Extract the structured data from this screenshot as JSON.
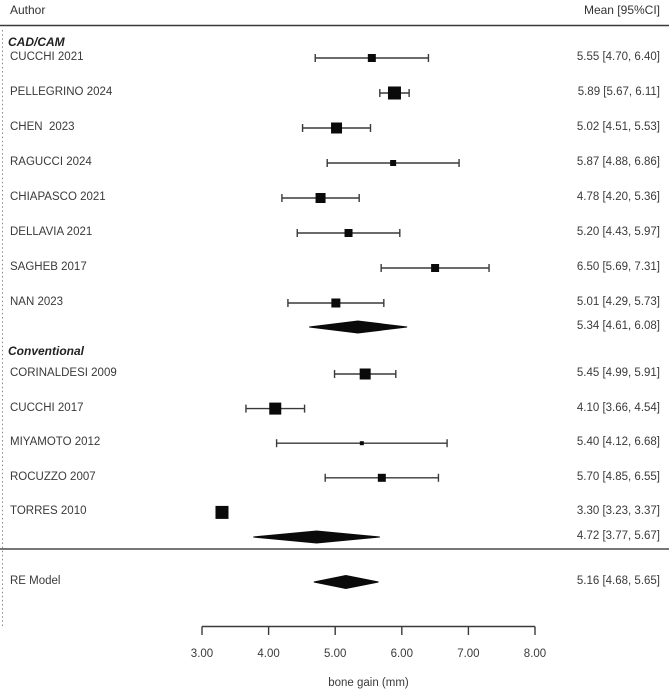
{
  "header": {
    "author_label": "Author",
    "mean_label": "Mean [95%CI]"
  },
  "chart_data": {
    "type": "forest",
    "title": "",
    "xlabel": "bone gain (mm)",
    "axis": {
      "min": 3.0,
      "max": 8.0,
      "tick_values": [
        3,
        4,
        5,
        6,
        7,
        8
      ],
      "tick_labels": [
        "3.00",
        "4.00",
        "5.00",
        "6.00",
        "7.00",
        "8.00"
      ]
    },
    "groups": [
      {
        "label": "CAD/CAM",
        "studies": [
          {
            "label": "CUCCHI 2021",
            "mean": 5.55,
            "lo": 4.7,
            "hi": 6.4,
            "text": "5.55 [4.70, 6.40]",
            "size": 8
          },
          {
            "label": "PELLEGRINO 2024",
            "mean": 5.89,
            "lo": 5.67,
            "hi": 6.11,
            "text": "5.89 [5.67, 6.11]",
            "size": 13
          },
          {
            "label": "CHEN  2023",
            "mean": 5.02,
            "lo": 4.51,
            "hi": 5.53,
            "text": "5.02 [4.51, 5.53]",
            "size": 11
          },
          {
            "label": "RAGUCCI 2024",
            "mean": 5.87,
            "lo": 4.88,
            "hi": 6.86,
            "text": "5.87 [4.88, 6.86]",
            "size": 6
          },
          {
            "label": "CHIAPASCO 2021",
            "mean": 4.78,
            "lo": 4.2,
            "hi": 5.36,
            "text": "4.78 [4.20, 5.36]",
            "size": 10
          },
          {
            "label": "DELLAVIA 2021",
            "mean": 5.2,
            "lo": 4.43,
            "hi": 5.97,
            "text": "5.20 [4.43, 5.97]",
            "size": 8
          },
          {
            "label": "SAGHEB 2017",
            "mean": 6.5,
            "lo": 5.69,
            "hi": 7.31,
            "text": "6.50 [5.69, 7.31]",
            "size": 8
          },
          {
            "label": "NAN 2023",
            "mean": 5.01,
            "lo": 4.29,
            "hi": 5.73,
            "text": "5.01 [4.29, 5.73]",
            "size": 9
          }
        ],
        "summary": {
          "mean": 5.34,
          "lo": 4.61,
          "hi": 6.08,
          "text": "5.34 [4.61, 6.08]"
        }
      },
      {
        "label": "Conventional",
        "studies": [
          {
            "label": "CORINALDESI 2009",
            "mean": 5.45,
            "lo": 4.99,
            "hi": 5.91,
            "text": "5.45 [4.99, 5.91]",
            "size": 11
          },
          {
            "label": "CUCCHI 2017",
            "mean": 4.1,
            "lo": 3.66,
            "hi": 4.54,
            "text": "4.10 [3.66, 4.54]",
            "size": 12
          },
          {
            "label": "MIYAMOTO 2012",
            "mean": 5.4,
            "lo": 4.12,
            "hi": 6.68,
            "text": "5.40 [4.12, 6.68]",
            "size": 4
          },
          {
            "label": "ROCUZZO 2007",
            "mean": 5.7,
            "lo": 4.85,
            "hi": 6.55,
            "text": "5.70 [4.85, 6.55]",
            "size": 8
          },
          {
            "label": "TORRES 2010",
            "mean": 3.3,
            "lo": 3.23,
            "hi": 3.37,
            "text": "3.30 [3.23, 3.37]",
            "size": 13
          }
        ],
        "summary": {
          "mean": 4.72,
          "lo": 3.77,
          "hi": 5.67,
          "text": "4.72 [3.77, 5.67]"
        }
      }
    ],
    "overall": {
      "label": "RE Model",
      "mean": 5.16,
      "lo": 4.68,
      "hi": 5.65,
      "text": "5.16 [4.68, 5.65]"
    },
    "colors": {
      "marker": "#0a0a0a",
      "line": "#3a3a3a",
      "text": "#3a3a3a"
    }
  }
}
